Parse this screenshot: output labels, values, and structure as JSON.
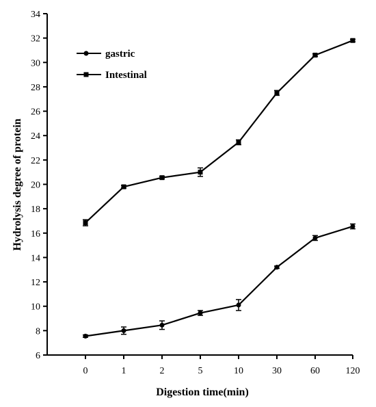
{
  "chart_data": {
    "type": "line",
    "x": [
      "0",
      "1",
      "2",
      "5",
      "10",
      "30",
      "60",
      "120"
    ],
    "xlabel": "Digestion time(min)",
    "ylabel": "Hydrolysis degree of protein",
    "ylim": [
      6,
      34
    ],
    "yticks": [
      6,
      8,
      10,
      12,
      14,
      16,
      18,
      20,
      22,
      24,
      26,
      28,
      30,
      32,
      34
    ],
    "grid": false,
    "legend": "top-left",
    "series": [
      {
        "name": "gastric",
        "marker": "circle",
        "values": [
          7.55,
          8.0,
          8.45,
          9.45,
          10.1,
          13.2,
          15.6,
          16.55
        ],
        "errors": [
          0.1,
          0.3,
          0.35,
          0.2,
          0.45,
          0.1,
          0.2,
          0.2
        ]
      },
      {
        "name": "Intestinal",
        "marker": "square",
        "values": [
          16.85,
          19.8,
          20.55,
          21.0,
          23.45,
          27.5,
          30.6,
          31.8
        ],
        "errors": [
          0.25,
          0.1,
          0.1,
          0.35,
          0.2,
          0.2,
          0.1,
          0.1
        ]
      }
    ]
  }
}
